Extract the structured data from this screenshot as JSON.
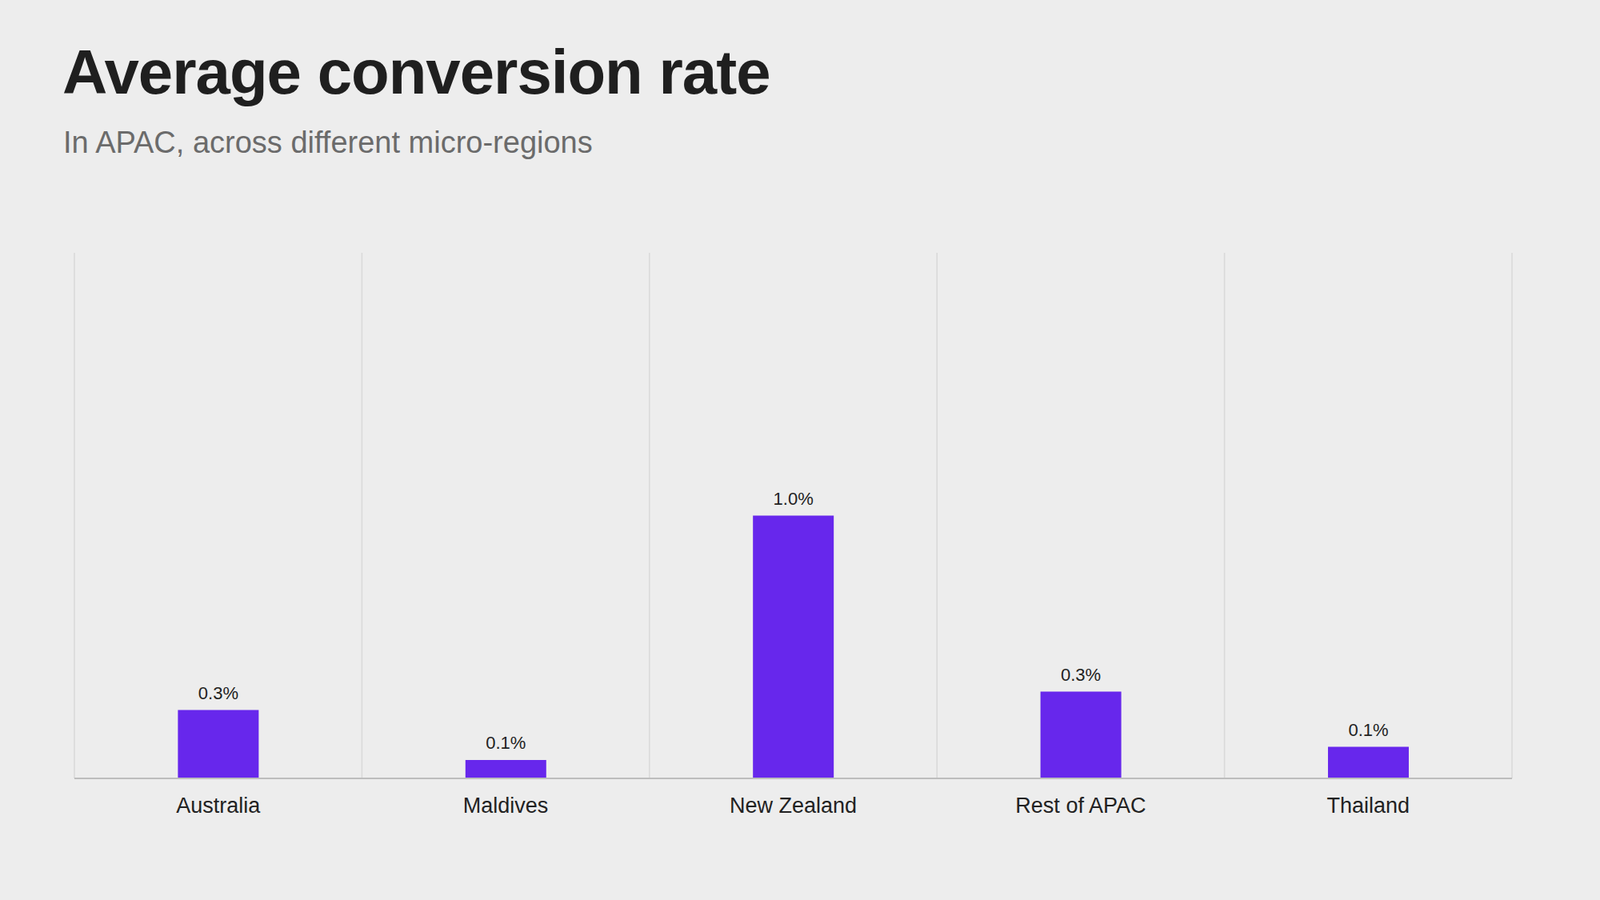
{
  "chart_data": {
    "type": "bar",
    "title": "Average conversion rate",
    "subtitle": "In APAC, across different micro-regions",
    "categories": [
      "Australia",
      "Maldives",
      "New Zealand",
      "Rest of APAC",
      "Thailand"
    ],
    "values": [
      0.26,
      0.07,
      1.0,
      0.33,
      0.12
    ],
    "value_labels": [
      "0.3%",
      "0.1%",
      "1.0%",
      "0.3%",
      "0.1%"
    ],
    "color": "#6727ec",
    "ylim": [
      0,
      2
    ],
    "grid": true,
    "data_labels": true,
    "tick_labels": "x"
  }
}
